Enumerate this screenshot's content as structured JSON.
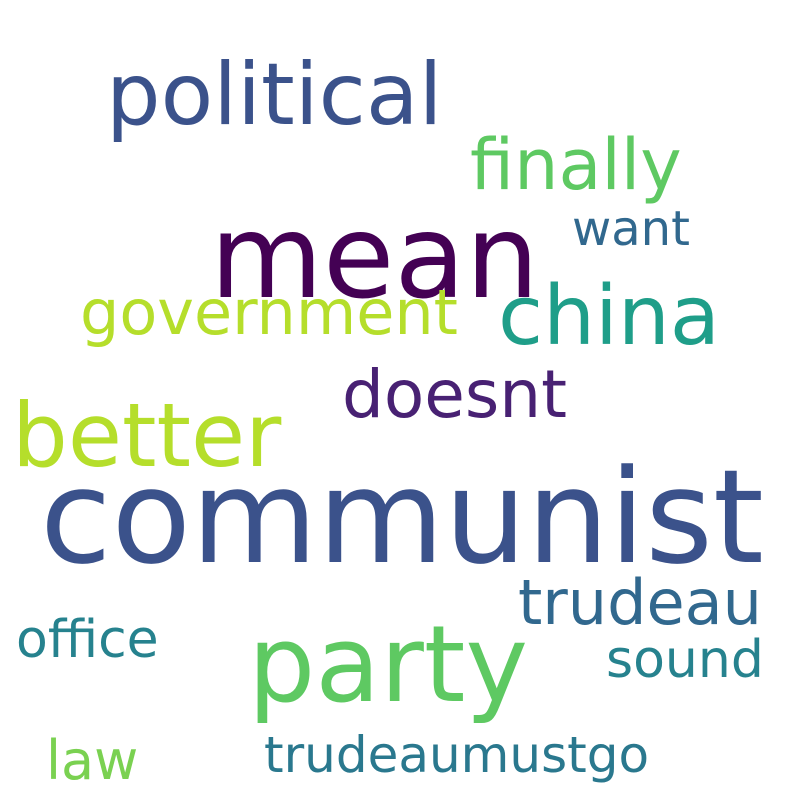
{
  "words": {
    "political": {
      "text": "political",
      "color": "#3b528b"
    },
    "finally": {
      "text": "finally",
      "color": "#5ec962"
    },
    "want": {
      "text": "want",
      "color": "#31688e"
    },
    "mean": {
      "text": "mean",
      "color": "#440154"
    },
    "china": {
      "text": "china",
      "color": "#1f9e89"
    },
    "government": {
      "text": "government",
      "color": "#b5de2b"
    },
    "doesnt": {
      "text": "doesnt",
      "color": "#482173"
    },
    "better": {
      "text": "better",
      "color": "#b5de2b"
    },
    "communist": {
      "text": "communist",
      "color": "#3b528b"
    },
    "trudeau": {
      "text": "trudeau",
      "color": "#31688e"
    },
    "office": {
      "text": "office",
      "color": "#26828e"
    },
    "party": {
      "text": "party",
      "color": "#5ec962"
    },
    "sound": {
      "text": "sound",
      "color": "#26828e"
    },
    "law": {
      "text": "law",
      "color": "#7ad151"
    },
    "trudeaumustgo": {
      "text": "trudeaumustgo",
      "color": "#2a788e"
    }
  }
}
